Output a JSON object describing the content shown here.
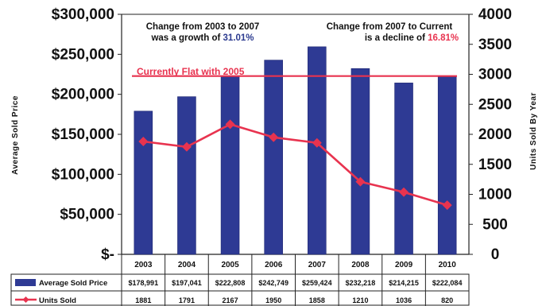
{
  "chart_data": {
    "type": "bar",
    "categories": [
      "2003",
      "2004",
      "2005",
      "2006",
      "2007",
      "2008",
      "2009",
      "2010"
    ],
    "series": [
      {
        "name": "Average Sold Price",
        "type": "bar",
        "axis": "left",
        "values": [
          178991,
          197041,
          222808,
          242749,
          259424,
          232218,
          214215,
          222084
        ],
        "labels": [
          "$178,991",
          "$197,041",
          "$222,808",
          "$242,749",
          "$259,424",
          "$232,218",
          "$214,215",
          "$222,084"
        ],
        "color": "#2e3a94"
      },
      {
        "name": "Units Sold",
        "type": "line",
        "axis": "right",
        "values": [
          1881,
          1791,
          2167,
          1950,
          1858,
          1210,
          1036,
          820
        ],
        "labels": [
          "1881",
          "1791",
          "2167",
          "1950",
          "1858",
          "1210",
          "1036",
          "820"
        ],
        "color": "#e8334f"
      }
    ],
    "ylabel": "Average Sold Price",
    "y2label": "Units Sold By Year",
    "ylim": [
      0,
      300000
    ],
    "y2lim": [
      0,
      4000
    ],
    "yticks": [
      "$-",
      "$50,000",
      "$100,000",
      "$150,000",
      "$200,000",
      "$250,000",
      "$300,000"
    ],
    "y2ticks": [
      "0",
      "500",
      "1000",
      "1500",
      "2000",
      "2500",
      "3000",
      "3500",
      "4000"
    ],
    "reference_line": {
      "label": "Currently Flat with 2005",
      "value": 222808,
      "color": "#e8334f"
    },
    "annotations": {
      "left_line1": "Change from 2003 to 2007",
      "left_line2_prefix": "was a growth of ",
      "left_value": "31.01%",
      "right_line1": "Change from 2007 to Current",
      "right_line2_prefix": "is a decline of ",
      "right_value": "16.81%"
    },
    "grid": false,
    "legend": "data-table-below"
  }
}
